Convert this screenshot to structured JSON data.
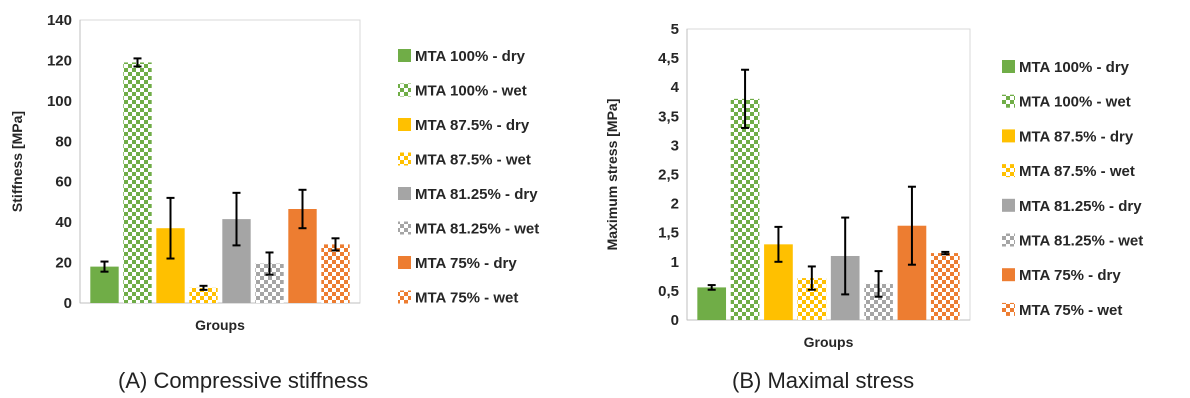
{
  "colors": {
    "green": "#70ad47",
    "yellow": "#ffc000",
    "gray": "#a5a5a5",
    "orange": "#ed7d31",
    "axis": "#bfbfbf",
    "errorbar": "#000000"
  },
  "chart_data": [
    {
      "type": "bar",
      "caption": "(A) Compressive stiffness",
      "xlabel": "Groups",
      "ylabel": "Stiffness [MPa]",
      "ylim": [
        0,
        140
      ],
      "yticks": [
        "0",
        "20",
        "40",
        "60",
        "80",
        "100",
        "120",
        "140"
      ],
      "grid": false,
      "legend_position": "right",
      "categories": [
        "Groups"
      ],
      "series": [
        {
          "name": "MTA 100% - dry",
          "color": "#70ad47",
          "pattern": "solid",
          "values": [
            18
          ],
          "error": [
            2.5
          ]
        },
        {
          "name": "MTA 100% - wet",
          "color": "#70ad47",
          "pattern": "checker",
          "values": [
            119
          ],
          "error": [
            2
          ]
        },
        {
          "name": "MTA 87.5% - dry",
          "color": "#ffc000",
          "pattern": "solid",
          "values": [
            37
          ],
          "error": [
            15
          ]
        },
        {
          "name": "MTA 87.5% - wet",
          "color": "#ffc000",
          "pattern": "checker",
          "values": [
            7.5
          ],
          "error": [
            1
          ]
        },
        {
          "name": "MTA 81.25% - dry",
          "color": "#a5a5a5",
          "pattern": "solid",
          "values": [
            41.5
          ],
          "error": [
            13
          ]
        },
        {
          "name": "MTA 81.25% - wet",
          "color": "#a5a5a5",
          "pattern": "checker",
          "values": [
            19.5
          ],
          "error": [
            5.5
          ]
        },
        {
          "name": "MTA 75% - dry",
          "color": "#ed7d31",
          "pattern": "solid",
          "values": [
            46.5
          ],
          "error": [
            9.5
          ]
        },
        {
          "name": "MTA 75% - wet",
          "color": "#ed7d31",
          "pattern": "checker",
          "values": [
            29
          ],
          "error": [
            3
          ]
        }
      ]
    },
    {
      "type": "bar",
      "caption": "(B) Maximal stress",
      "xlabel": "Groups",
      "ylabel": "Maximum stress [MPa]",
      "ylim": [
        0,
        5
      ],
      "yticks": [
        "0",
        "0,5",
        "1",
        "1,5",
        "2",
        "2,5",
        "3",
        "3,5",
        "4",
        "4,5",
        "5"
      ],
      "grid": false,
      "legend_position": "right",
      "categories": [
        "Groups"
      ],
      "series": [
        {
          "name": "MTA 100% - dry",
          "color": "#70ad47",
          "pattern": "solid",
          "values": [
            0.56
          ],
          "error": [
            0.04
          ]
        },
        {
          "name": "MTA 100% - wet",
          "color": "#70ad47",
          "pattern": "checker",
          "values": [
            3.8
          ],
          "error": [
            0.5
          ]
        },
        {
          "name": "MTA 87.5% - dry",
          "color": "#ffc000",
          "pattern": "solid",
          "values": [
            1.3
          ],
          "error": [
            0.3
          ]
        },
        {
          "name": "MTA 87.5% - wet",
          "color": "#ffc000",
          "pattern": "checker",
          "values": [
            0.72
          ],
          "error": [
            0.2
          ]
        },
        {
          "name": "MTA 81.25% - dry",
          "color": "#a5a5a5",
          "pattern": "solid",
          "values": [
            1.1
          ],
          "error": [
            0.66
          ]
        },
        {
          "name": "MTA 81.25% - wet",
          "color": "#a5a5a5",
          "pattern": "checker",
          "values": [
            0.62
          ],
          "error": [
            0.22
          ]
        },
        {
          "name": "MTA 75% - dry",
          "color": "#ed7d31",
          "pattern": "solid",
          "values": [
            1.62
          ],
          "error": [
            0.67
          ]
        },
        {
          "name": "MTA 75% - wet",
          "color": "#ed7d31",
          "pattern": "checker",
          "values": [
            1.15
          ],
          "error": [
            0.02
          ]
        }
      ]
    }
  ]
}
